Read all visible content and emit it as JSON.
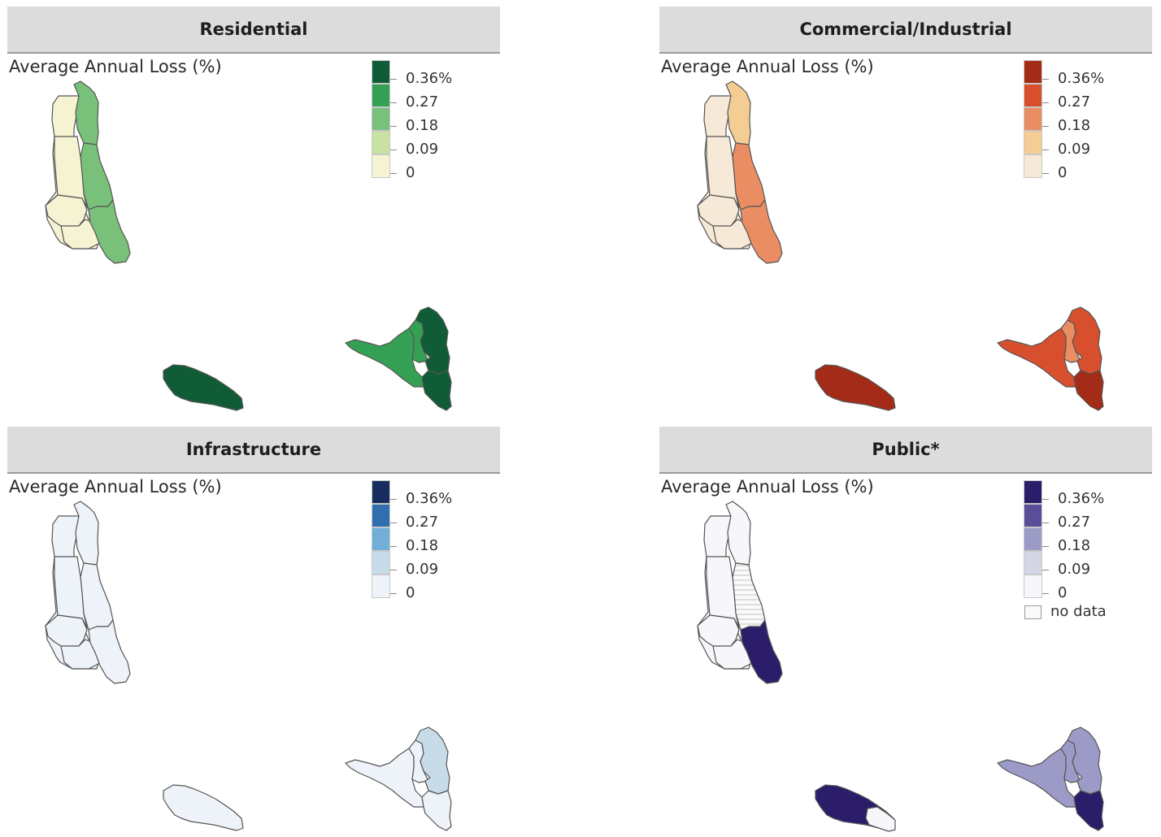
{
  "subtitle": "Average Annual Loss (%)",
  "legend_labels": [
    "0.36%",
    "0.27",
    "0.18",
    "0.09",
    "0"
  ],
  "no_data_label": "no data",
  "panels": [
    {
      "title": "Residential",
      "colors": [
        "#0f5c36",
        "#33a053",
        "#79c07a",
        "#c9e2a4",
        "#f6f3d2"
      ],
      "regions": {
        "gc_west": 4,
        "gc_ne": 2,
        "gc_east": 2,
        "gc_mid": 4,
        "gc_sw": 4,
        "gc_s": 4,
        "gc_se": 2,
        "moheli": 0,
        "anj_w": 1,
        "anj_c": 1,
        "anj_ne": 0,
        "anj_se": 0
      }
    },
    {
      "title": "Commercial/Industrial",
      "colors": [
        "#a32b17",
        "#d84f2e",
        "#ea8d63",
        "#f4cd95",
        "#f7e9d7"
      ],
      "regions": {
        "gc_west": 4,
        "gc_ne": 3,
        "gc_east": 2,
        "gc_mid": 4,
        "gc_sw": 4,
        "gc_s": 4,
        "gc_se": 2,
        "moheli": 0,
        "anj_w": 1,
        "anj_c": 2,
        "anj_ne": 1,
        "anj_se": 0
      }
    },
    {
      "title": "Infrastructure",
      "colors": [
        "#162d5e",
        "#2f6fad",
        "#72afd6",
        "#c7dbe9",
        "#eef3f9"
      ],
      "regions": {
        "gc_west": 4,
        "gc_ne": 4,
        "gc_east": 4,
        "gc_mid": 4,
        "gc_sw": 4,
        "gc_s": 4,
        "gc_se": 4,
        "moheli": 4,
        "anj_w": 4,
        "anj_c": 4,
        "anj_ne": 3,
        "anj_se": 4
      }
    },
    {
      "title": "Public*",
      "colors": [
        "#2b1d6a",
        "#5a4e98",
        "#9c9bc7",
        "#d4d6e6",
        "#f7f6fa"
      ],
      "has_no_data": true,
      "regions": {
        "gc_west": 4,
        "gc_ne": 4,
        "gc_east": 5,
        "gc_mid": 4,
        "gc_sw": 4,
        "gc_s": 4,
        "gc_se": 0,
        "moheli": 0,
        "moheli_e": 4,
        "anj_w": 2,
        "anj_c": 2,
        "anj_ne": 2,
        "anj_se": 0
      }
    }
  ]
}
